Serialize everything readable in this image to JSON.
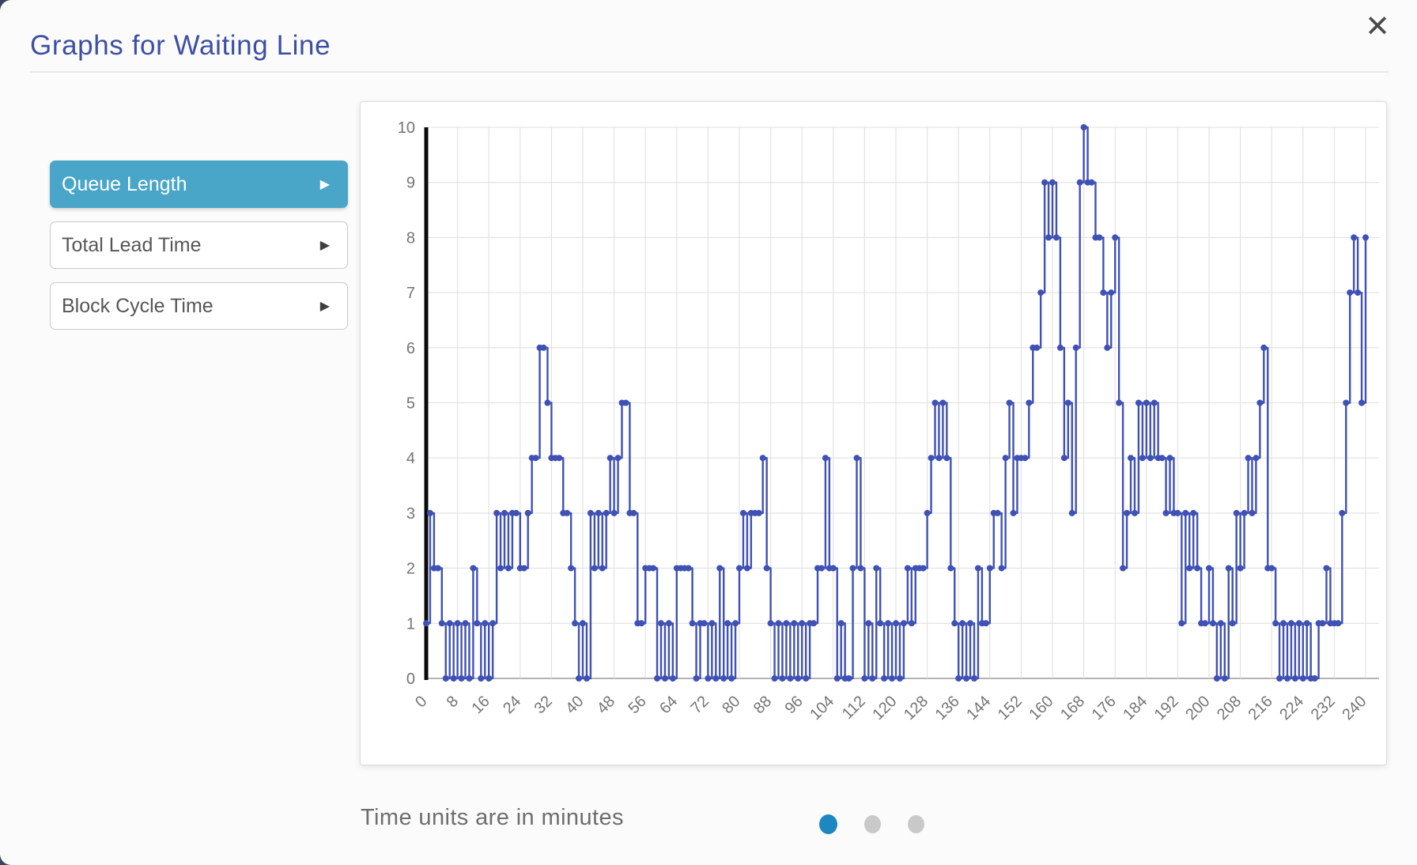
{
  "modal": {
    "title": "Graphs for Waiting Line",
    "close_icon": "✕"
  },
  "sidebar": {
    "arrow_icon": "▶",
    "buttons": [
      {
        "label": "Queue Length",
        "active": true
      },
      {
        "label": "Total Lead Time",
        "active": false
      },
      {
        "label": "Block Cycle Time",
        "active": false
      }
    ]
  },
  "footer": {
    "caption": "Time units are in minutes",
    "pagination": {
      "count": 3,
      "active_index": 0
    }
  },
  "colors": {
    "title": "#3c4fa3",
    "active_button": "#4aa6c8",
    "line": "#3f51b5",
    "zero_marker": "#0a0a0a",
    "grid": "#e0e0e0",
    "axis": "#9a9a9a",
    "tick_text": "#757575",
    "active_dot": "#1d87c2",
    "inactive_dot": "#c9c9c9"
  },
  "chart_data": {
    "type": "line",
    "subtype": "step-after",
    "title": "",
    "xlabel": "",
    "ylabel": "",
    "x_unit": "minutes",
    "x_start": 0,
    "x_step": 1,
    "xlim": [
      0,
      240
    ],
    "ylim": [
      0,
      10
    ],
    "x_tick_interval": 8,
    "y_tick_interval": 1,
    "x_tick_labels": [
      0,
      8,
      16,
      24,
      32,
      40,
      48,
      56,
      64,
      72,
      80,
      88,
      96,
      104,
      112,
      120,
      128,
      136,
      144,
      152,
      160,
      168,
      176,
      184,
      192,
      200,
      208,
      216,
      224,
      232,
      240
    ],
    "y_tick_labels": [
      0,
      1,
      2,
      3,
      4,
      5,
      6,
      7,
      8,
      9,
      10
    ],
    "grid": true,
    "markers": true,
    "legend_position": "none",
    "zero_time_marker_line": true,
    "series": [
      {
        "name": "Queue Length",
        "values": [
          1,
          3,
          2,
          2,
          1,
          0,
          1,
          0,
          1,
          0,
          1,
          0,
          2,
          1,
          0,
          1,
          0,
          1,
          3,
          2,
          3,
          2,
          3,
          3,
          2,
          2,
          3,
          4,
          4,
          6,
          6,
          5,
          4,
          4,
          4,
          3,
          3,
          2,
          1,
          0,
          1,
          0,
          3,
          2,
          3,
          2,
          3,
          4,
          3,
          4,
          5,
          5,
          3,
          3,
          1,
          1,
          2,
          2,
          2,
          0,
          1,
          0,
          1,
          0,
          2,
          2,
          2,
          2,
          1,
          0,
          1,
          1,
          0,
          1,
          0,
          2,
          0,
          1,
          0,
          1,
          2,
          3,
          2,
          3,
          3,
          3,
          4,
          2,
          1,
          0,
          1,
          0,
          1,
          0,
          1,
          0,
          1,
          0,
          1,
          1,
          2,
          2,
          4,
          2,
          2,
          0,
          1,
          0,
          0,
          2,
          4,
          2,
          0,
          1,
          0,
          2,
          1,
          0,
          1,
          0,
          1,
          0,
          1,
          2,
          1,
          2,
          2,
          2,
          3,
          4,
          5,
          4,
          5,
          4,
          2,
          1,
          0,
          1,
          0,
          1,
          0,
          2,
          1,
          1,
          2,
          3,
          3,
          2,
          4,
          5,
          3,
          4,
          4,
          4,
          5,
          6,
          6,
          7,
          9,
          8,
          9,
          8,
          6,
          4,
          5,
          3,
          6,
          9,
          10,
          9,
          9,
          8,
          8,
          7,
          6,
          7,
          8,
          5,
          2,
          3,
          4,
          3,
          5,
          4,
          5,
          4,
          5,
          4,
          4,
          3,
          4,
          3,
          3,
          1,
          3,
          2,
          3,
          2,
          1,
          1,
          2,
          1,
          0,
          1,
          0,
          2,
          1,
          3,
          2,
          3,
          4,
          3,
          4,
          5,
          6,
          2,
          2,
          1,
          0,
          1,
          0,
          1,
          0,
          1,
          0,
          1,
          0,
          0,
          1,
          1,
          2,
          1,
          1,
          1,
          3,
          5,
          7,
          8,
          7,
          5,
          8
        ]
      }
    ]
  }
}
